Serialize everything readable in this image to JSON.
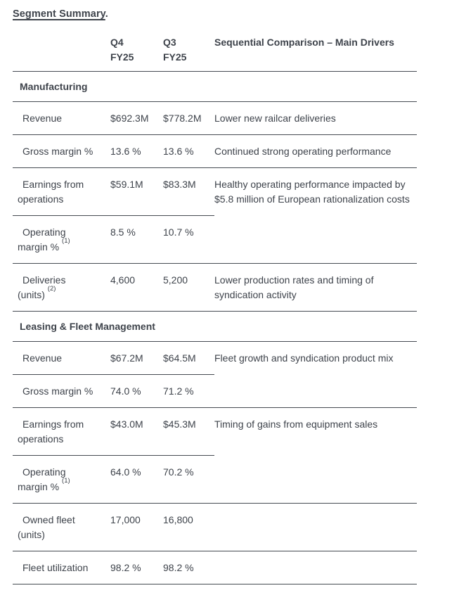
{
  "page": {
    "title": "Segment Summary",
    "title_suffix": "."
  },
  "colors": {
    "text": "#3e434b",
    "rule": "#454a51",
    "background": "#ffffff"
  },
  "table": {
    "header": {
      "q4_lines": [
        "Q4",
        "FY25"
      ],
      "q3_lines": [
        "Q3",
        "FY25"
      ],
      "drivers": "Sequential Comparison – Main Drivers"
    },
    "sections": [
      {
        "name": "Manufacturing",
        "rows": [
          {
            "label_lines": [
              "Revenue"
            ],
            "q4": "$692.3M",
            "q3": "$778.2M",
            "drivers": "Lower new railcar deliveries"
          },
          {
            "label_lines": [
              "Gross margin %"
            ],
            "q4": "13.6 %",
            "q3": "13.6 %",
            "drivers": "Continued strong operating performance"
          },
          {
            "label_lines": [
              "Earnings from",
              "operations"
            ],
            "q4": "$59.1M",
            "q3": "$83.3M",
            "drivers": "Healthy operating performance impacted by $5.8 million of European rationalization costs",
            "drivers_rowspan": 2
          },
          {
            "label_lines": [
              "Operating",
              "margin %"
            ],
            "footnote": "(1)",
            "q4": "8.5 %",
            "q3": "10.7 %",
            "drivers": null
          },
          {
            "label_lines": [
              "Deliveries",
              "(units)"
            ],
            "footnote": "(2)",
            "q4": "4,600",
            "q3": "5,200",
            "drivers": "Lower production rates and timing of syndication activity"
          }
        ]
      },
      {
        "name": "Leasing & Fleet Management",
        "rows": [
          {
            "label_lines": [
              "Revenue"
            ],
            "q4": "$67.2M",
            "q3": "$64.5M",
            "drivers": "Fleet growth and syndication product mix",
            "drivers_rowspan": 2
          },
          {
            "label_lines": [
              "Gross margin %"
            ],
            "q4": "74.0 %",
            "q3": "71.2 %",
            "drivers": null
          },
          {
            "label_lines": [
              "Earnings from",
              "operations"
            ],
            "q4": "$43.0M",
            "q3": "$45.3M",
            "drivers": "Timing of gains from equipment sales",
            "drivers_rowspan": 2
          },
          {
            "label_lines": [
              "Operating",
              "margin %"
            ],
            "footnote": "(1)",
            "q4": "64.0 %",
            "q3": "70.2 %",
            "drivers": null
          },
          {
            "label_lines": [
              "Owned fleet",
              "(units)"
            ],
            "q4": "17,000",
            "q3": "16,800",
            "drivers": ""
          },
          {
            "label_lines": [
              "Fleet utilization"
            ],
            "q4": "98.2 %",
            "q3": "98.2 %",
            "drivers": ""
          }
        ]
      }
    ]
  }
}
